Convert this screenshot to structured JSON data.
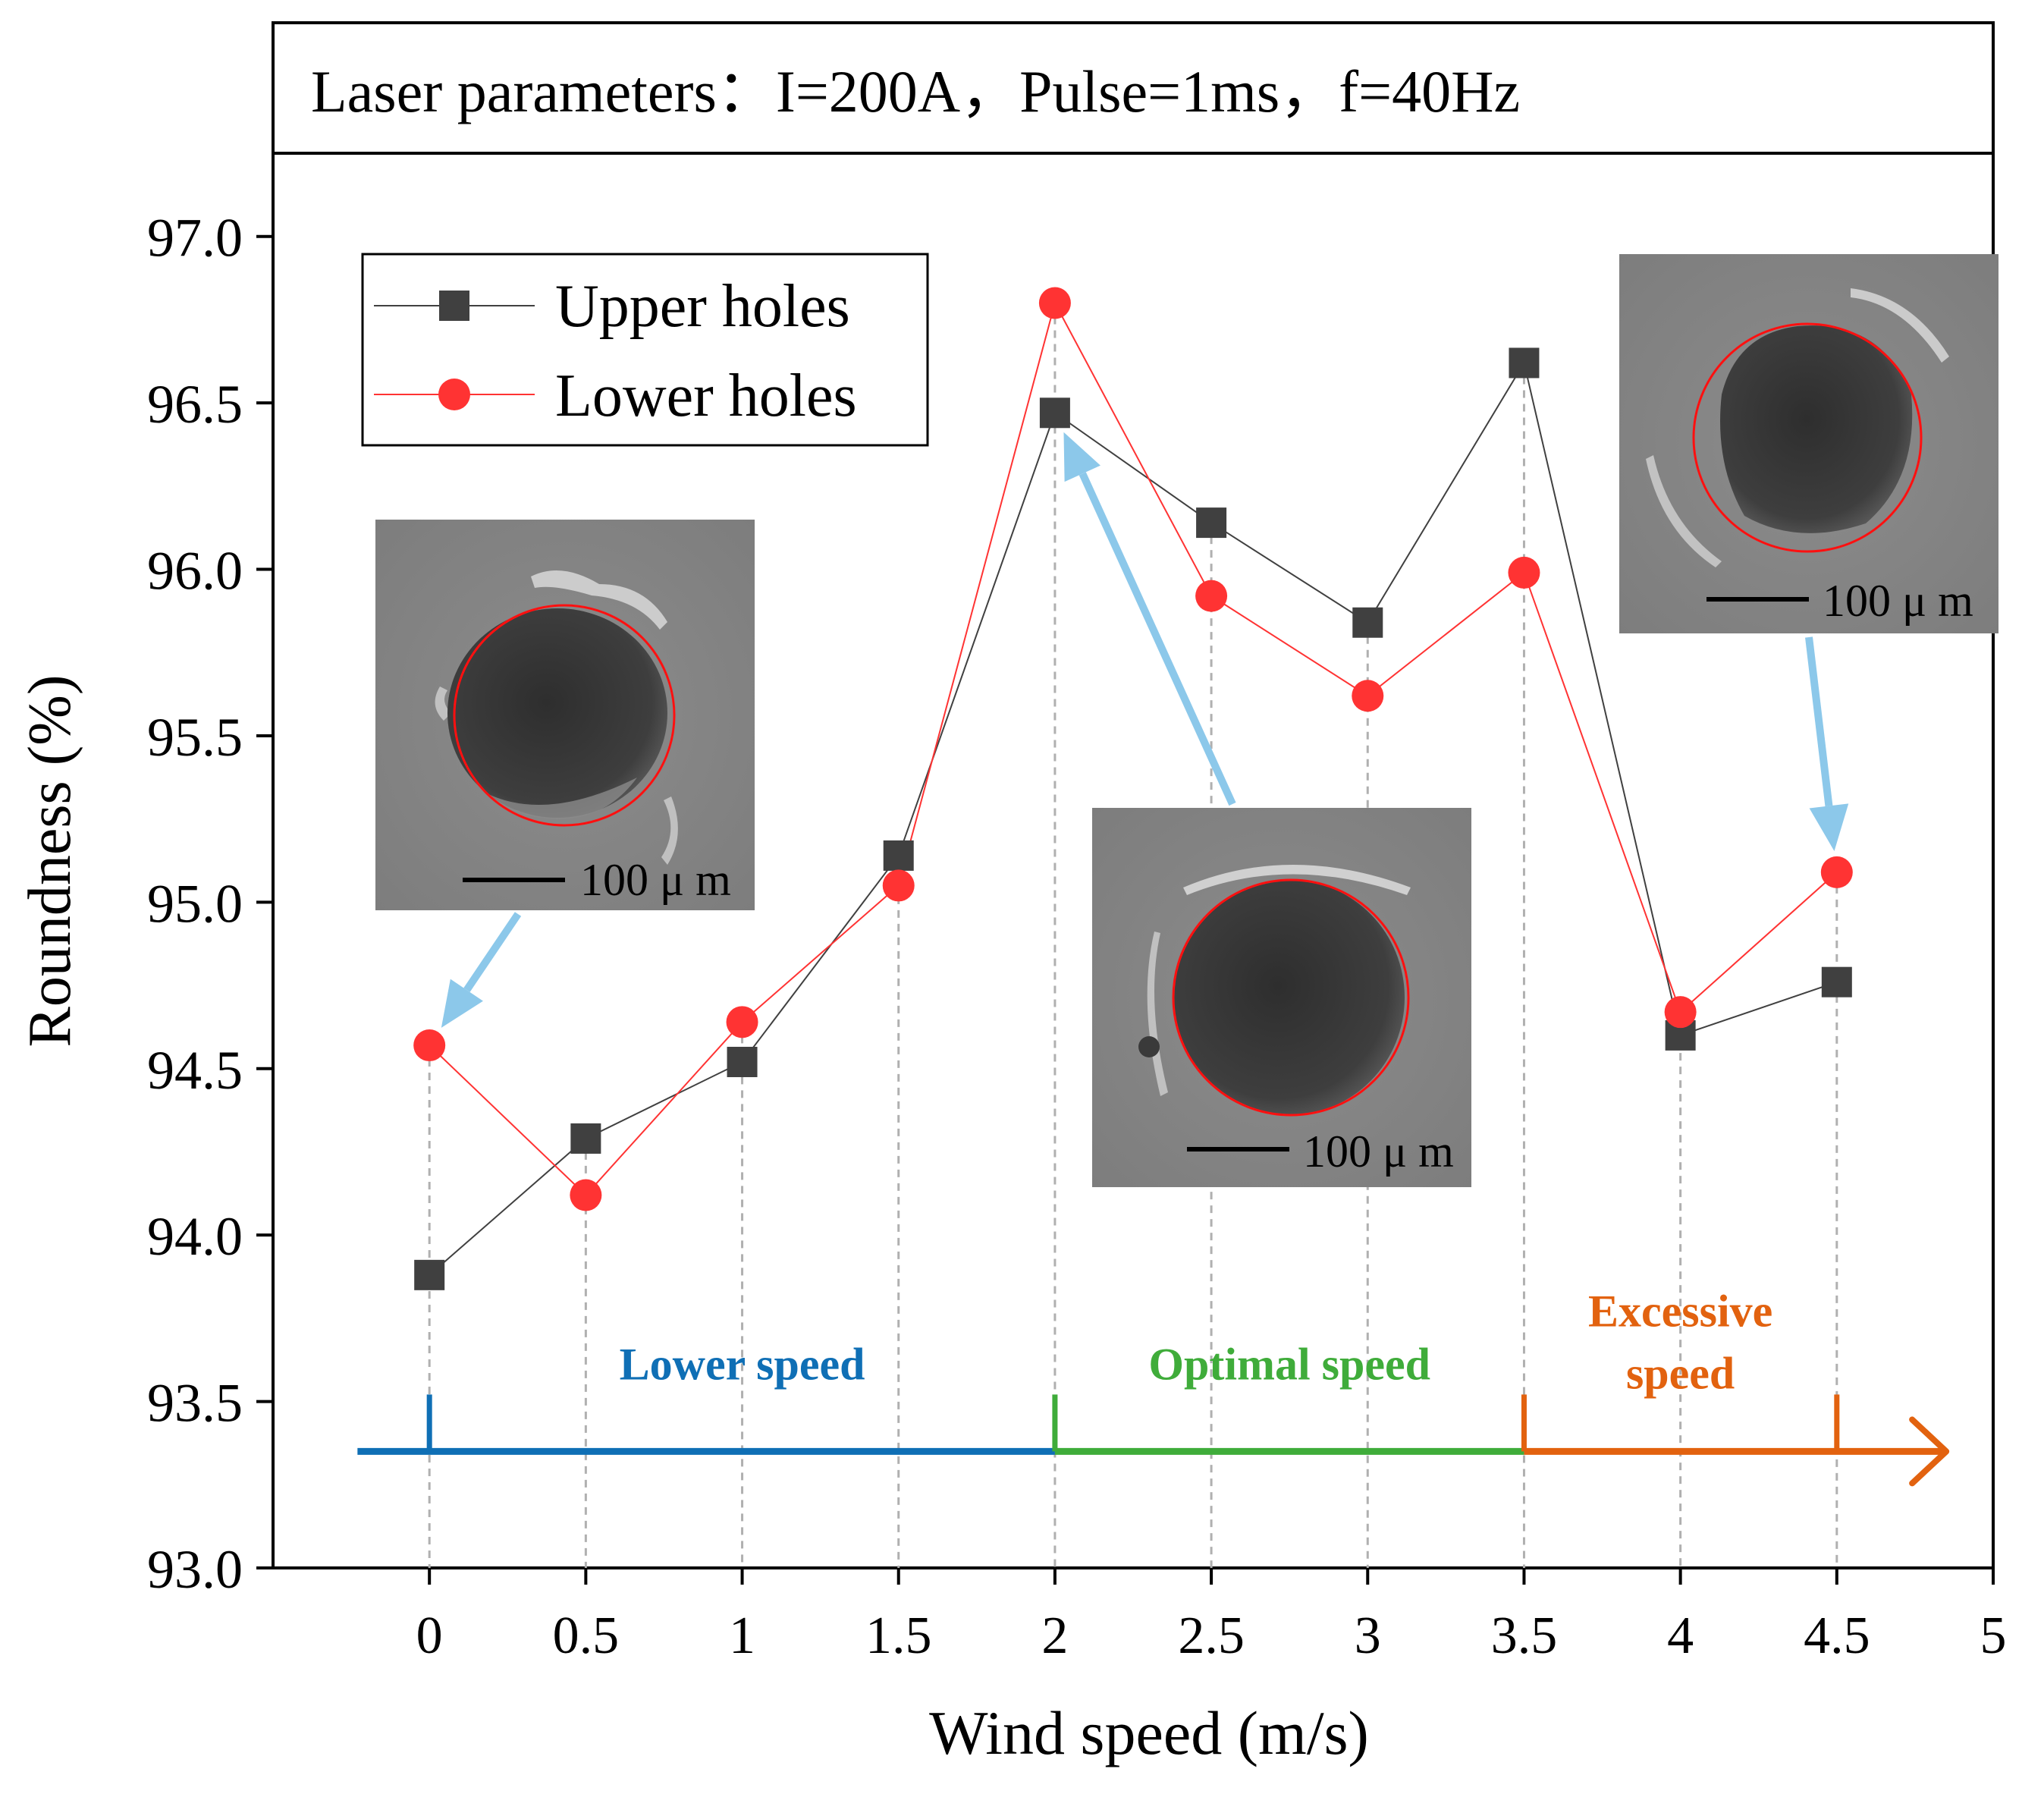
{
  "chart_data": {
    "type": "line",
    "header": "Laser parameters：I=200A，Pulse=1ms，f=40Hz",
    "xlabel": "Wind speed (m/s)",
    "ylabel": "Roundness (%)",
    "xlim": [
      -0.5,
      5
    ],
    "ylim": [
      93.0,
      97.25
    ],
    "x_ticks": [
      0,
      0.5,
      1,
      1.5,
      2,
      2.5,
      3,
      3.5,
      4,
      4.5,
      5
    ],
    "x_tick_labels": [
      "0",
      "0.5",
      "1",
      "1.5",
      "2",
      "2.5",
      "3",
      "3.5",
      "4",
      "4.5",
      "5"
    ],
    "y_ticks": [
      93.0,
      93.5,
      94.0,
      94.5,
      95.0,
      95.5,
      96.0,
      96.5,
      97.0
    ],
    "y_tick_labels": [
      "93.0",
      "93.5",
      "94.0",
      "94.5",
      "95.0",
      "95.5",
      "96.0",
      "96.5",
      "97.0"
    ],
    "x": [
      0,
      0.5,
      1,
      1.5,
      2,
      2.5,
      3,
      3.5,
      4,
      4.5
    ],
    "series": [
      {
        "name": "Upper holes",
        "marker": "square",
        "color": "#404040",
        "values": [
          93.88,
          94.29,
          94.52,
          95.14,
          96.47,
          96.14,
          95.84,
          96.62,
          94.6,
          94.76
        ]
      },
      {
        "name": "Lower holes",
        "marker": "circle",
        "color": "#ff3333",
        "values": [
          94.57,
          94.12,
          94.64,
          95.05,
          96.8,
          95.92,
          95.62,
          95.99,
          94.67,
          95.09
        ]
      }
    ],
    "legend_position": "top-left",
    "regions": [
      {
        "label": "Lower speed",
        "from": 0,
        "to": 2,
        "color": "#0f6fb5"
      },
      {
        "label": "Optimal speed",
        "from": 2,
        "to": 3.5,
        "color": "#3fac3a"
      },
      {
        "label": "Excessive speed",
        "from": 3.5,
        "to": 4.5,
        "color": "#e2620f"
      }
    ],
    "region_arrow_y": 93.35,
    "insets": [
      {
        "scale_label": "100 μ m",
        "points_to": {
          "x": 0,
          "y": 94.57
        }
      },
      {
        "scale_label": "100 μ m",
        "points_to": {
          "x": 2,
          "y": 96.47
        }
      },
      {
        "scale_label": "100 μ m",
        "points_to": {
          "x": 4.5,
          "y": 95.09
        }
      }
    ],
    "arrow_color": "#8cc8ea"
  }
}
